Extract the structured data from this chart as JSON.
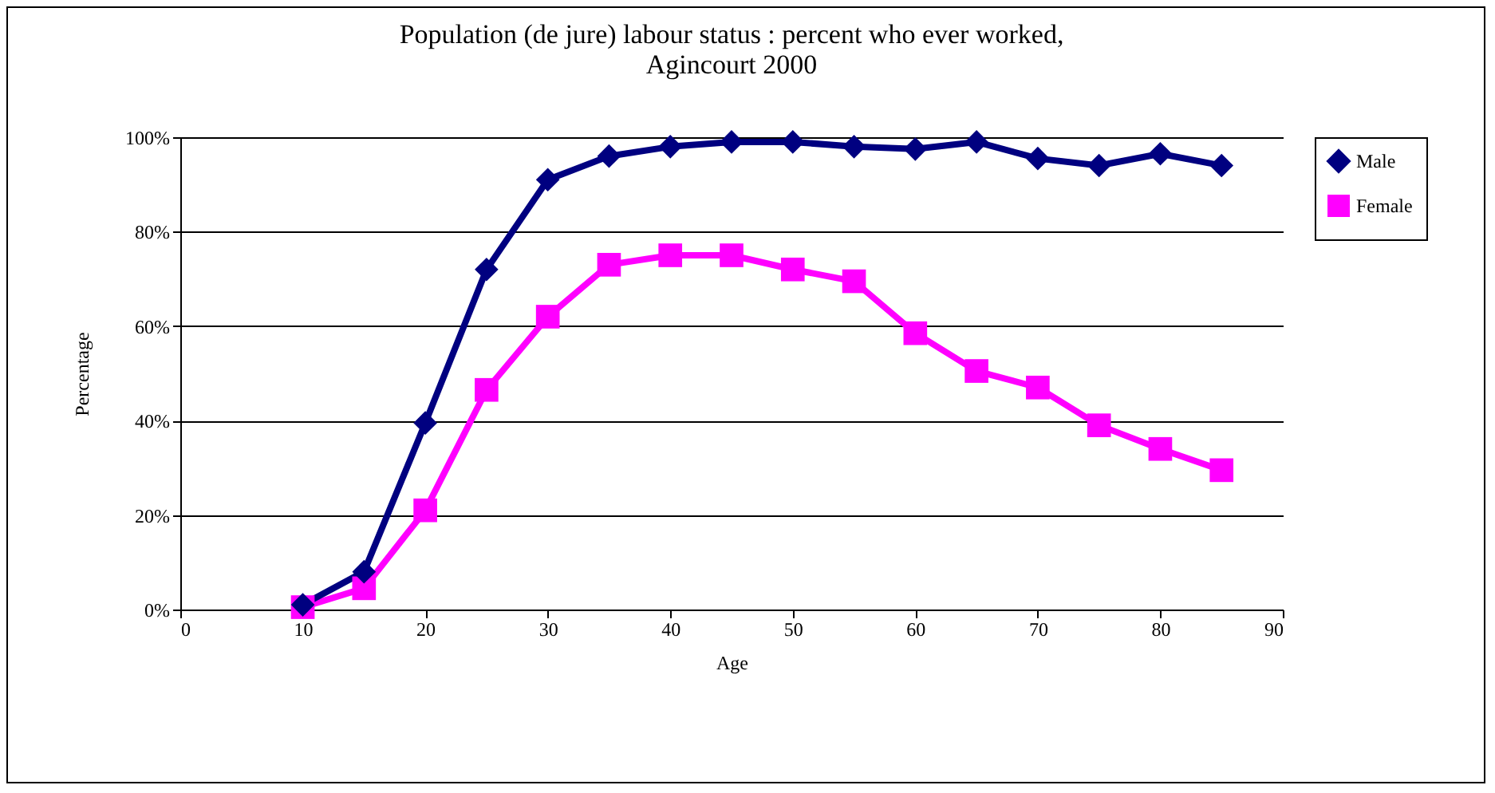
{
  "chart_data": {
    "type": "line",
    "title": "Population (de jure) labour status : percent who ever worked,\nAgincourt 2000",
    "xlabel": "Age",
    "ylabel": "Percentage",
    "x": [
      10,
      15,
      20,
      25,
      30,
      35,
      40,
      45,
      50,
      55,
      60,
      65,
      70,
      75,
      80,
      85
    ],
    "series": [
      {
        "name": "Male",
        "color": "#000080",
        "marker": "diamond",
        "values": [
          1,
          8,
          39.5,
          72,
          91,
          96,
          98,
          99,
          99,
          98,
          97.5,
          99,
          95.5,
          94,
          96.5,
          94
        ]
      },
      {
        "name": "Female",
        "color": "#ff00ff",
        "marker": "square",
        "values": [
          0.5,
          4.5,
          21,
          46.5,
          62,
          73,
          75,
          75,
          72,
          69.5,
          58.5,
          50.5,
          47,
          39,
          34,
          29.5
        ]
      }
    ],
    "xlim": [
      0,
      90
    ],
    "xticks": [
      0,
      10,
      20,
      30,
      40,
      50,
      60,
      70,
      80,
      90
    ],
    "ylim": [
      0,
      100
    ],
    "yticks": [
      {
        "value": 0,
        "label": "0%"
      },
      {
        "value": 20,
        "label": "20%"
      },
      {
        "value": 40,
        "label": "40%"
      },
      {
        "value": 60,
        "label": "60%"
      },
      {
        "value": 80,
        "label": "80%"
      },
      {
        "value": 100,
        "label": "100%"
      }
    ],
    "grid": "y",
    "legend": "right",
    "line_style": "solid"
  }
}
